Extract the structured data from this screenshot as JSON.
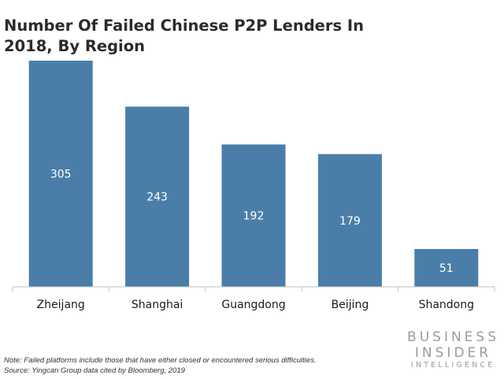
{
  "chart_data": {
    "type": "bar",
    "title": "Number Of Failed Chinese P2P Lenders In 2018, By Region",
    "categories": [
      "Zheijang",
      "Shanghai",
      "Guangdong",
      "Beijing",
      "Shandong"
    ],
    "values": [
      305,
      243,
      192,
      179,
      51
    ],
    "ylim": [
      0,
      305
    ],
    "xlabel": "",
    "ylabel": "",
    "grid": false,
    "bar_color": "#4a7ea8",
    "axis_color": "#bfbfbf",
    "data_label_color": "#ffffff",
    "note": "Note: Failed platforms include those that have either closed or encountered serious difficulties.",
    "source": "Source: Yingcan Group data cited by Bloomberg, 2019"
  },
  "branding": {
    "line1": "BUSINESS",
    "line2": "INSIDER",
    "line3": "INTELLIGENCE"
  }
}
